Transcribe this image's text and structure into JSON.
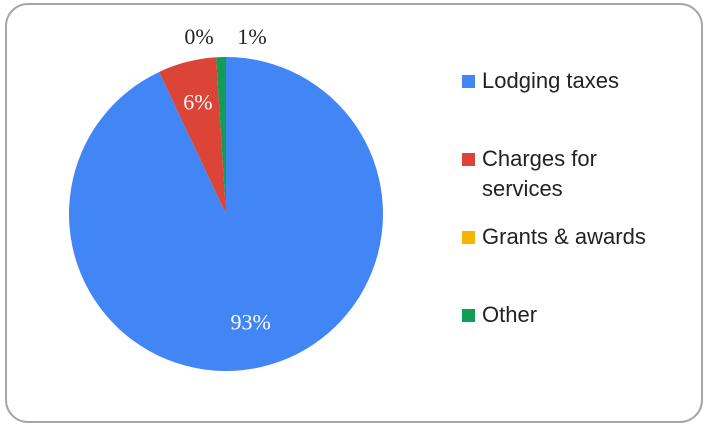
{
  "chart_data": {
    "type": "pie",
    "categories": [
      "Lodging taxes",
      "Charges for services",
      "Grants & awards",
      "Other"
    ],
    "values": [
      93,
      6,
      0,
      1
    ],
    "value_labels": [
      "93%",
      "6%",
      "0%",
      "1%"
    ],
    "colors": [
      "#4285f4",
      "#db4437",
      "#f4b400",
      "#0f9d58"
    ],
    "legend": "right"
  }
}
